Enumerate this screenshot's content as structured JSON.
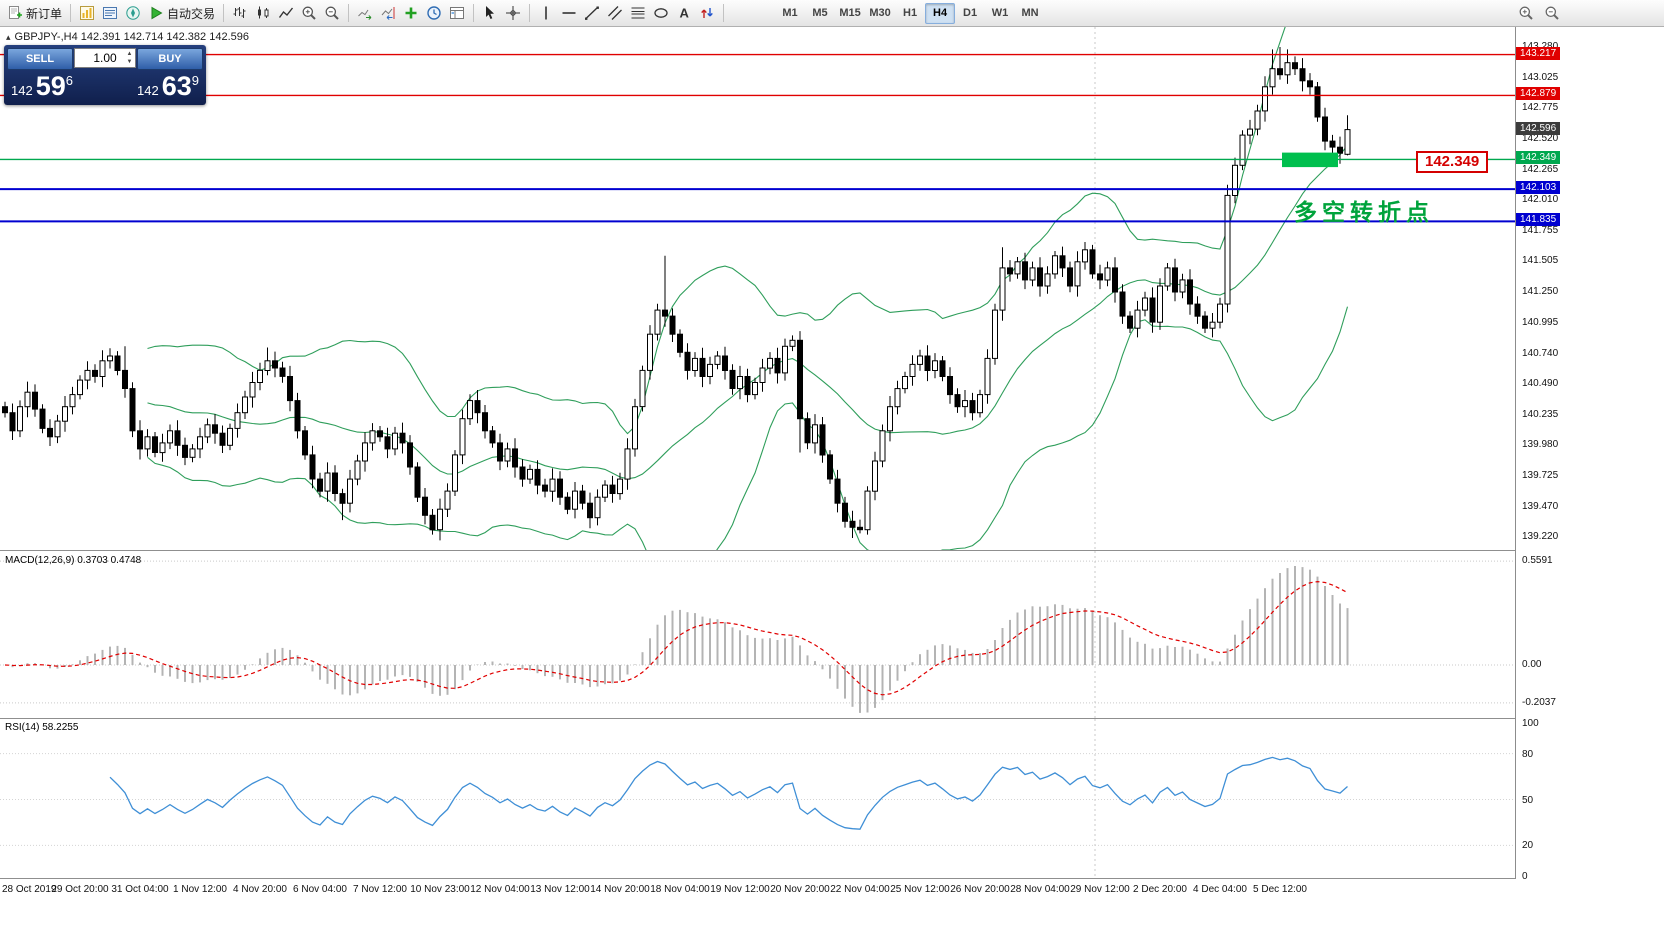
{
  "toolbar": {
    "new_order_label": "新订单",
    "auto_trading_label": "自动交易",
    "timeframes": [
      "M1",
      "M5",
      "M15",
      "M30",
      "H1",
      "H4",
      "D1",
      "W1",
      "MN"
    ],
    "active_timeframe": "H4"
  },
  "chart": {
    "symbol_header": "GBPJPY-,H4  142.391 142.714 142.382 142.596",
    "annotation_text": "多空转折点",
    "annotation_color": "#00a33c",
    "price_tag_label": "142.349"
  },
  "one_click": {
    "sell_label": "SELL",
    "buy_label": "BUY",
    "volume": "1.00",
    "sell_price": {
      "main": "142",
      "big": "59",
      "sup": "6"
    },
    "buy_price": {
      "main": "142",
      "big": "63",
      "sup": "9"
    }
  },
  "macd": {
    "label": "MACD(12,26,9) 0.3703 0.4748",
    "scale": [
      "0.5591",
      "0.00",
      "-0.2037"
    ]
  },
  "rsi": {
    "label": "RSI(14) 58.2255",
    "scale": [
      "100",
      "80",
      "50",
      "20",
      "0"
    ]
  },
  "current_price": {
    "label": "142.596",
    "value": 142.596,
    "color": "#3c3c3c"
  },
  "time_axis": [
    "28 Oct 2019",
    "29 Oct 20:00",
    "31 Oct 04:00",
    "1 Nov 12:00",
    "4 Nov 20:00",
    "6 Nov 04:00",
    "7 Nov 12:00",
    "10 Nov 23:00",
    "12 Nov 04:00",
    "13 Nov 12:00",
    "14 Nov 20:00",
    "18 Nov 04:00",
    "19 Nov 12:00",
    "20 Nov 20:00",
    "22 Nov 04:00",
    "25 Nov 12:00",
    "26 Nov 20:00",
    "28 Nov 04:00",
    "29 Nov 12:00",
    "2 Dec 20:00",
    "4 Dec 04:00",
    "5 Dec 12:00"
  ],
  "chart_data": {
    "type": "candlestick",
    "symbol": "GBPJPY-",
    "timeframe": "H4",
    "ohlc_current": {
      "open": 142.391,
      "high": 142.714,
      "low": 142.382,
      "close": 142.596
    },
    "y_ticks": [
      "143.280",
      "143.025",
      "142.775",
      "142.520",
      "142.265",
      "142.010",
      "141.755",
      "141.505",
      "141.250",
      "140.995",
      "140.740",
      "140.490",
      "140.235",
      "139.980",
      "139.725",
      "139.470",
      "139.220"
    ],
    "first_open": 140.3,
    "closes": [
      140.25,
      140.1,
      140.3,
      140.42,
      140.28,
      140.12,
      140.05,
      140.18,
      140.3,
      140.4,
      140.52,
      140.6,
      140.55,
      140.68,
      140.72,
      140.6,
      140.45,
      140.1,
      139.95,
      140.05,
      139.92,
      140.0,
      140.1,
      139.98,
      139.88,
      139.95,
      140.05,
      140.15,
      140.08,
      139.98,
      140.12,
      140.25,
      140.38,
      140.5,
      140.6,
      140.68,
      140.62,
      140.55,
      140.35,
      140.1,
      139.9,
      139.7,
      139.6,
      139.75,
      139.58,
      139.5,
      139.7,
      139.85,
      140.0,
      140.1,
      140.05,
      139.95,
      140.08,
      140.0,
      139.8,
      139.55,
      139.4,
      139.28,
      139.45,
      139.6,
      139.9,
      140.2,
      140.35,
      140.25,
      140.1,
      140.0,
      139.85,
      139.95,
      139.8,
      139.7,
      139.78,
      139.65,
      139.6,
      139.7,
      139.55,
      139.45,
      139.6,
      139.5,
      139.38,
      139.55,
      139.65,
      139.58,
      139.7,
      139.95,
      140.3,
      140.6,
      140.9,
      141.1,
      141.05,
      140.9,
      140.75,
      140.6,
      140.7,
      140.55,
      140.65,
      140.72,
      140.6,
      140.45,
      140.55,
      140.4,
      140.5,
      140.62,
      140.7,
      140.58,
      140.8,
      140.85,
      140.2,
      140.0,
      140.15,
      139.9,
      139.7,
      139.5,
      139.35,
      139.3,
      139.28,
      139.6,
      139.85,
      140.1,
      140.3,
      140.45,
      140.55,
      140.65,
      140.72,
      140.6,
      140.68,
      140.55,
      140.4,
      140.3,
      140.35,
      140.25,
      140.4,
      140.7,
      141.1,
      141.45,
      141.4,
      141.5,
      141.35,
      141.45,
      141.3,
      141.4,
      141.55,
      141.45,
      141.3,
      141.5,
      141.6,
      141.4,
      141.35,
      141.45,
      141.25,
      141.05,
      140.95,
      141.1,
      141.2,
      141.0,
      141.3,
      141.45,
      141.25,
      141.35,
      141.15,
      141.05,
      140.95,
      141.0,
      141.15,
      142.05,
      142.3,
      142.55,
      142.6,
      142.75,
      142.95,
      143.1,
      143.05,
      143.15,
      143.1,
      143.0,
      142.95,
      142.7,
      142.5,
      142.45,
      142.4,
      142.596
    ],
    "wick_overrides": {
      "16": {
        "h": 140.8
      },
      "35": {
        "h": 140.79
      },
      "45": {
        "l": 139.36
      },
      "57": {
        "l": 139.24
      },
      "88": {
        "h": 141.55
      },
      "106": {
        "l": 139.92
      },
      "114": {
        "l": 139.25
      },
      "133": {
        "h": 141.62
      },
      "163": {
        "l": 141.08
      },
      "169": {
        "h": 143.26
      },
      "170": {
        "h": 143.28
      },
      "171": {
        "h": 143.26
      }
    },
    "last_candle": [
      142.391,
      142.714,
      142.382,
      142.596
    ],
    "indicators": {
      "bollinger": {
        "period": 20,
        "deviation": 2,
        "color": "#2f9e5b"
      },
      "macd": {
        "fast": 12,
        "slow": 26,
        "signal": 9,
        "value": 0.3703,
        "signal_value": 0.4748
      },
      "rsi": {
        "period": 14,
        "value": 58.2255
      }
    },
    "horizontal_lines": [
      {
        "price": 143.217,
        "color": "#e00000",
        "width": 1.4
      },
      {
        "price": 142.879,
        "color": "#e00000",
        "width": 1.4
      },
      {
        "price": 142.349,
        "color": "#00a84f",
        "width": 1.4
      },
      {
        "price": 142.103,
        "color": "#0000d0",
        "width": 2
      },
      {
        "price": 141.835,
        "color": "#0000d0",
        "width": 2
      }
    ],
    "highlight_box": {
      "x": 1282,
      "width": 56,
      "price_top": 142.405,
      "price_bottom": 142.285,
      "color": "#00bf4e"
    },
    "period_separator_x": 1095
  }
}
